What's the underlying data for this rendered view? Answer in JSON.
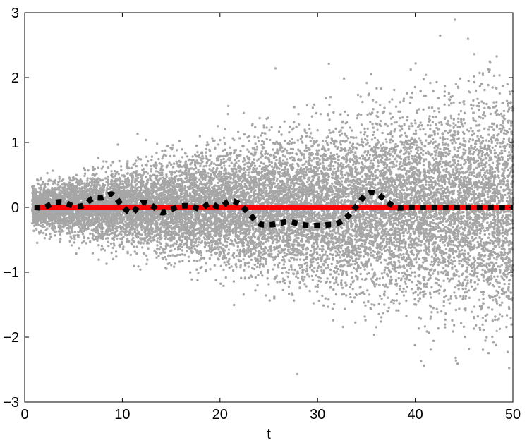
{
  "chart_data": {
    "type": "scatter",
    "title": "",
    "xlabel": "t",
    "ylabel": "",
    "xlim": [
      0,
      50
    ],
    "ylim": [
      -3,
      3
    ],
    "xticks": [
      0,
      10,
      20,
      30,
      40,
      50
    ],
    "yticks": [
      -3,
      -2,
      -1,
      0,
      1,
      2,
      3
    ],
    "xtick_labels": [
      "0",
      "10",
      "20",
      "30",
      "40",
      "50"
    ],
    "ytick_labels": [
      "−3",
      "−2",
      "−1",
      "0",
      "1",
      "2",
      "3"
    ],
    "grid": false,
    "legend": "none",
    "series": [
      {
        "style": "scatter",
        "color": "#a6a6a6",
        "t_range": [
          1,
          50
        ],
        "spread_at_start": 0.15,
        "spread_at_end": 0.85
      },
      {
        "style": "solid-line",
        "color": "#ff0000",
        "x": [
          1,
          50
        ],
        "y": [
          0,
          0
        ]
      },
      {
        "style": "dotted-line",
        "color": "#000000",
        "x": [
          1,
          2,
          3,
          4,
          5,
          6,
          7,
          8,
          9,
          10,
          11,
          12,
          13,
          14,
          15,
          16,
          17,
          18,
          19,
          20,
          21,
          22,
          23,
          24,
          25,
          26,
          27,
          28,
          29,
          30,
          31,
          32,
          33,
          34,
          35,
          36,
          37,
          38,
          39,
          40,
          41,
          42,
          43,
          44,
          45,
          46,
          47,
          48,
          49,
          50
        ],
        "y": [
          0,
          0,
          0.07,
          0.08,
          0.02,
          0.03,
          0.14,
          0.15,
          0.2,
          0.02,
          -0.08,
          0.07,
          0.03,
          -0.08,
          -0.03,
          0.02,
          0.02,
          -0.02,
          0.06,
          0.0,
          0.1,
          0.05,
          -0.1,
          -0.25,
          -0.27,
          -0.25,
          -0.22,
          -0.25,
          -0.28,
          -0.28,
          -0.27,
          -0.25,
          -0.15,
          0.02,
          0.2,
          0.22,
          0.1,
          0,
          0,
          0,
          0,
          0,
          0,
          0,
          0,
          0,
          0,
          0,
          0,
          0
        ]
      }
    ]
  }
}
